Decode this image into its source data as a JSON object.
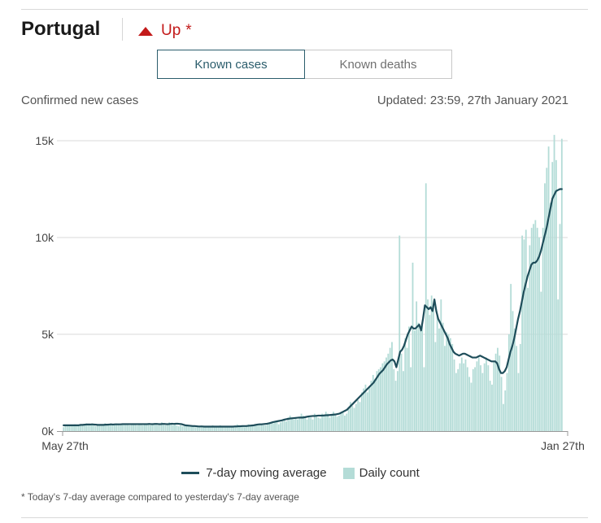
{
  "header": {
    "title": "Portugal",
    "trend_label": "Up",
    "trend_marker": "*",
    "trend_icon": "triangle-up-icon",
    "trend_color": "#c31a1a"
  },
  "tabs": [
    {
      "label": "Known cases",
      "selected": true
    },
    {
      "label": "Known deaths",
      "selected": false
    }
  ],
  "subtitle": "Confirmed new cases",
  "updated": "Updated: 23:59, 27th January 2021",
  "legend": {
    "line_label": "7-day moving average",
    "bar_label": "Daily count"
  },
  "footnote": "* Today's 7-day average compared to yesterday's 7-day average",
  "colors": {
    "bar": "#b4dcd7",
    "line": "#1e4d5a",
    "grid": "#d9d9d9",
    "accent": "#2b5d6c"
  },
  "chart_data": {
    "type": "bar",
    "title": "Confirmed new cases",
    "x_start_label": "May 27th",
    "x_end_label": "Jan 27th",
    "ylim": [
      0,
      15000
    ],
    "y_ticks": [
      {
        "value": 0,
        "label": "0k"
      },
      {
        "value": 5000,
        "label": "5k"
      },
      {
        "value": 10000,
        "label": "10k"
      },
      {
        "value": 15000,
        "label": "15k"
      }
    ],
    "series": [
      {
        "name": "Daily count",
        "kind": "bar",
        "values": [
          200,
          300,
          300,
          250,
          300,
          300,
          350,
          300,
          300,
          300,
          300,
          350,
          400,
          350,
          300,
          350,
          300,
          250,
          300,
          300,
          300,
          300,
          400,
          300,
          350,
          400,
          300,
          350,
          400,
          350,
          300,
          350,
          350,
          400,
          350,
          300,
          350,
          400,
          350,
          300,
          400,
          350,
          300,
          350,
          350,
          400,
          300,
          350,
          400,
          350,
          300,
          350,
          450,
          350,
          300,
          350,
          450,
          400,
          300,
          400,
          300,
          250,
          300,
          250,
          300,
          250,
          250,
          300,
          250,
          300,
          200,
          200,
          250,
          300,
          200,
          250,
          200,
          250,
          200,
          300,
          250,
          200,
          250,
          300,
          200,
          250,
          200,
          250,
          200,
          200,
          250,
          300,
          350,
          250,
          300,
          250,
          200,
          300,
          350,
          300,
          250,
          300,
          350,
          300,
          400,
          350,
          300,
          300,
          350,
          400,
          450,
          400,
          450,
          500,
          350,
          450,
          500,
          600,
          500,
          700,
          800,
          700,
          600,
          700,
          600,
          700,
          900,
          800,
          700,
          600,
          800,
          700,
          600,
          900,
          800,
          700,
          650,
          900,
          800,
          1000,
          900,
          700,
          800,
          1000,
          900,
          750,
          800,
          900,
          1000,
          800,
          900,
          1200,
          1500,
          1300,
          1200,
          1400,
          1600,
          1500,
          2000,
          2200,
          2400,
          2000,
          2300,
          2600,
          2900,
          2700,
          3100,
          3200,
          3300,
          3500,
          3600,
          3800,
          4000,
          4300,
          4600,
          3200,
          2600,
          3100,
          10100,
          4000,
          3100,
          4800,
          4300,
          5400,
          3300,
          8700,
          5200,
          6700,
          5600,
          5200,
          5500,
          3300,
          12800,
          6800,
          6000,
          7000,
          6500,
          4600,
          6000,
          5300,
          6800,
          5600,
          4400,
          5100,
          5000,
          4800,
          4500,
          3700,
          3000,
          3200,
          3500,
          3800,
          3500,
          3700,
          3300,
          2800,
          2500,
          3200,
          3300,
          3600,
          3800,
          3400,
          3000,
          3500,
          3800,
          3400,
          2600,
          2400,
          3600,
          4000,
          4300,
          3900,
          2800,
          1400,
          2100,
          3000,
          5000,
          7600,
          6200,
          5300,
          4400,
          3000,
          4500,
          10100,
          9900,
          10400,
          7400,
          9600,
          10500,
          10700,
          10900,
          10500,
          10000,
          7200,
          10500,
          12800,
          13600,
          14700,
          11800,
          13900,
          15300,
          14000,
          6800,
          10700,
          15100
        ]
      },
      {
        "name": "7-day moving average",
        "kind": "line",
        "values": [
          300,
          300,
          300,
          300,
          300,
          300,
          300,
          300,
          300,
          320,
          320,
          330,
          340,
          340,
          340,
          350,
          340,
          330,
          320,
          320,
          320,
          320,
          330,
          330,
          340,
          350,
          340,
          350,
          350,
          350,
          350,
          360,
          360,
          360,
          360,
          360,
          360,
          360,
          360,
          360,
          360,
          360,
          360,
          360,
          360,
          370,
          360,
          360,
          370,
          370,
          360,
          360,
          370,
          370,
          360,
          360,
          370,
          380,
          370,
          380,
          380,
          370,
          360,
          330,
          300,
          290,
          280,
          270,
          260,
          260,
          250,
          240,
          240,
          240,
          230,
          230,
          230,
          230,
          230,
          230,
          230,
          230,
          230,
          230,
          230,
          230,
          230,
          230,
          230,
          230,
          240,
          240,
          250,
          250,
          260,
          260,
          260,
          270,
          280,
          290,
          300,
          320,
          340,
          350,
          350,
          360,
          370,
          380,
          400,
          430,
          460,
          480,
          500,
          520,
          540,
          560,
          590,
          610,
          630,
          650,
          660,
          670,
          680,
          690,
          700,
          700,
          700,
          720,
          740,
          760,
          770,
          780,
          780,
          790,
          800,
          800,
          800,
          810,
          820,
          820,
          830,
          840,
          850,
          860,
          880,
          900,
          950,
          1000,
          1050,
          1100,
          1200,
          1300,
          1400,
          1500,
          1600,
          1700,
          1800,
          1900,
          2000,
          2100,
          2200,
          2300,
          2400,
          2500,
          2650,
          2800,
          2950,
          3050,
          3150,
          3300,
          3450,
          3550,
          3650,
          3700,
          3600,
          3300,
          3700,
          4100,
          4200,
          4400,
          4700,
          5000,
          5200,
          5400,
          5300,
          5300,
          5400,
          5500,
          5200,
          5800,
          6500,
          6400,
          6300,
          6400,
          6200,
          6800,
          6200,
          5800,
          5600,
          5400,
          5200,
          5000,
          4800,
          4500,
          4300,
          4100,
          4000,
          3950,
          3900,
          3950,
          4000,
          4000,
          3950,
          3900,
          3850,
          3800,
          3800,
          3800,
          3850,
          3900,
          3850,
          3800,
          3750,
          3700,
          3650,
          3600,
          3600,
          3600,
          3500,
          3200,
          3000,
          3000,
          3100,
          3300,
          3700,
          4100,
          4400,
          4800,
          5300,
          5800,
          6200,
          6700,
          7200,
          7600,
          8000,
          8300,
          8600,
          8700,
          8700,
          8800,
          9000,
          9300,
          9700,
          10100,
          10500,
          11000,
          11500,
          12000,
          12200,
          12400,
          12450,
          12500,
          12500
        ]
      }
    ]
  }
}
